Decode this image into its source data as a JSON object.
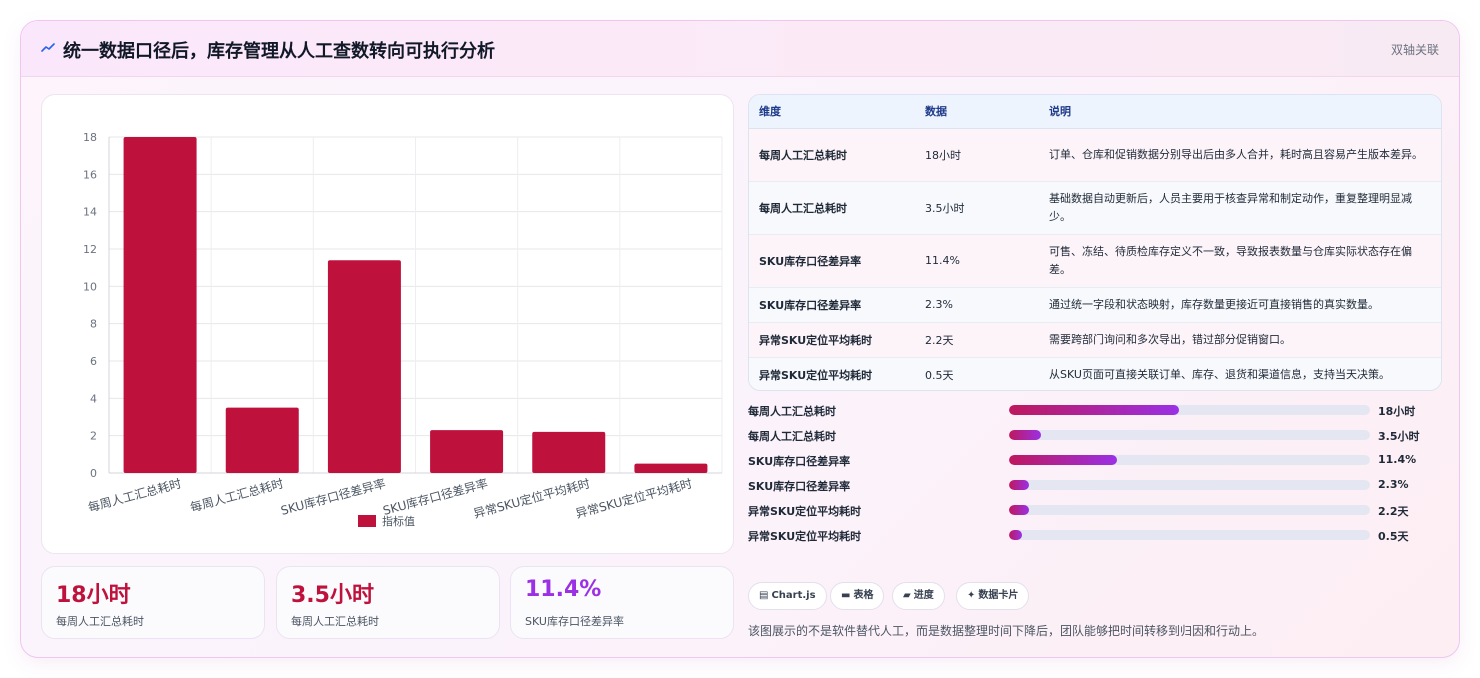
{
  "header": {
    "icon": "trend-line-icon",
    "title": "统一数据口径后，库存管理从人工查数转向可执行分析",
    "badge": "双轴关联"
  },
  "colors": {
    "bar": "#be123c",
    "accent_start": "#be185d",
    "accent_end": "#9b30e5",
    "stat_red": "#be123c",
    "stat_purple": "#9b30e5"
  },
  "chart_data": {
    "type": "bar",
    "categories": [
      "每周人工汇总耗时",
      "每周人工汇总耗时",
      "SKU库存口径差异率",
      "SKU库存口径差异率",
      "异常SKU定位平均耗时",
      "异常SKU定位平均耗时"
    ],
    "series": [
      {
        "name": "指标值",
        "values": [
          18,
          3.5,
          11.4,
          2.3,
          2.2,
          0.5
        ]
      }
    ],
    "yticks": [
      "0",
      "2",
      "4",
      "6",
      "8",
      "10",
      "12",
      "14",
      "16",
      "18"
    ],
    "ylim": [
      0,
      18
    ],
    "grid": true,
    "legend": "bottom"
  },
  "stats": [
    {
      "value": "18小时",
      "label": "每周人工汇总耗时",
      "color": "#be123c"
    },
    {
      "value": "3.5小时",
      "label": "每周人工汇总耗时",
      "color": "#be123c"
    },
    {
      "value": "11.4%",
      "label": "SKU库存口径差异率",
      "color": "#9b30e5"
    }
  ],
  "table": {
    "headers": [
      "维度",
      "数据",
      "说明"
    ],
    "rows": [
      {
        "dim": "每周人工汇总耗时",
        "val": "18小时",
        "desc": "订单、仓库和促销数据分别导出后由多人合并，耗时高且容易产生版本差异。"
      },
      {
        "dim": "每周人工汇总耗时",
        "val": "3.5小时",
        "desc": "基础数据自动更新后，人员主要用于核查异常和制定动作，重复整理明显减少。"
      },
      {
        "dim": "SKU库存口径差异率",
        "val": "11.4%",
        "desc": "可售、冻结、待质检库存定义不一致，导致报表数量与仓库实际状态存在偏差。"
      },
      {
        "dim": "SKU库存口径差异率",
        "val": "2.3%",
        "desc": "通过统一字段和状态映射，库存数量更接近可直接销售的真实数量。"
      },
      {
        "dim": "异常SKU定位平均耗时",
        "val": "2.2天",
        "desc": "需要跨部门询问和多次导出，错过部分促销窗口。"
      },
      {
        "dim": "异常SKU定位平均耗时",
        "val": "0.5天",
        "desc": "从SKU页面可直接关联订单、库存、退货和渠道信息，支持当天决策。"
      }
    ]
  },
  "progress": [
    {
      "label": "每周人工汇总耗时",
      "value": "18小时",
      "fraction": 0.47
    },
    {
      "label": "每周人工汇总耗时",
      "value": "3.5小时",
      "fraction": 0.09
    },
    {
      "label": "SKU库存口径差异率",
      "value": "11.4%",
      "fraction": 0.3
    },
    {
      "label": "SKU库存口径差异率",
      "value": "2.3%",
      "fraction": 0.055
    },
    {
      "label": "异常SKU定位平均耗时",
      "value": "2.2天",
      "fraction": 0.055
    },
    {
      "label": "异常SKU定位平均耗时",
      "value": "0.5天",
      "fraction": 0.035
    }
  ],
  "chips": [
    {
      "icon": "chart-icon",
      "glyph": "▤",
      "label": "Chart.js"
    },
    {
      "icon": "table-icon",
      "glyph": "▬",
      "label": "表格"
    },
    {
      "icon": "progress-icon",
      "glyph": "▰",
      "label": "进度"
    },
    {
      "icon": "sparkle-icon",
      "glyph": "✦",
      "label": "数据卡片"
    }
  ],
  "footer_note": "该图展示的不是软件替代人工，而是数据整理时间下降后，团队能够把时间转移到归因和行动上。"
}
